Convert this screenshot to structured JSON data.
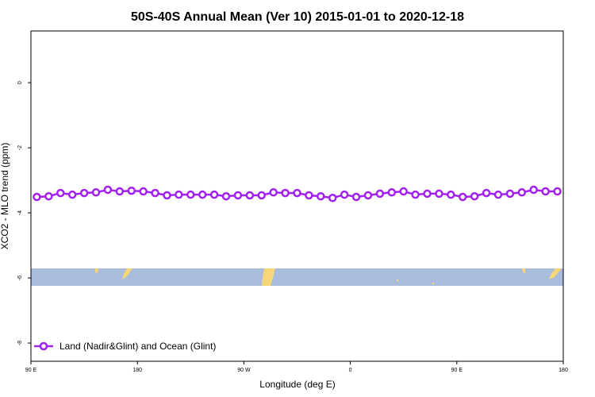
{
  "chart_data": {
    "type": "line",
    "title": "50S-40S Annual Mean (Ver 10)   2015-01-01 to 2020-12-18",
    "x_label": "Longitude (deg E)",
    "y_label": "XCO2 - MLO trend (ppm)",
    "x": [
      95,
      105,
      115,
      125,
      135,
      145,
      155,
      165,
      175,
      185,
      195,
      205,
      215,
      225,
      235,
      245,
      255,
      265,
      275,
      285,
      295,
      305,
      315,
      325,
      335,
      345,
      355,
      365,
      375,
      385,
      395,
      405,
      415,
      425,
      435,
      445,
      455,
      465,
      475,
      485,
      495,
      505,
      515,
      525,
      535
    ],
    "series": [
      {
        "name": "Land (Nadir&Glint) and Ocean (Glint)",
        "color": "#a020f0",
        "values": [
          -3.51,
          -3.49,
          -3.39,
          -3.44,
          -3.39,
          -3.37,
          -3.29,
          -3.34,
          -3.32,
          -3.34,
          -3.39,
          -3.46,
          -3.44,
          -3.44,
          -3.44,
          -3.44,
          -3.49,
          -3.46,
          -3.46,
          -3.46,
          -3.37,
          -3.39,
          -3.39,
          -3.46,
          -3.49,
          -3.54,
          -3.44,
          -3.51,
          -3.46,
          -3.41,
          -3.37,
          -3.34,
          -3.44,
          -3.41,
          -3.41,
          -3.44,
          -3.51,
          -3.49,
          -3.39,
          -3.44,
          -3.41,
          -3.37,
          -3.29,
          -3.34,
          -3.34
        ]
      }
    ],
    "xlim": [
      90,
      540
    ],
    "xticks": [
      {
        "value": 90,
        "label": "90 E"
      },
      {
        "value": 180,
        "label": "180"
      },
      {
        "value": 270,
        "label": "90 W"
      },
      {
        "value": 360,
        "label": "0"
      },
      {
        "value": 450,
        "label": "90 E"
      },
      {
        "value": 540,
        "label": "180"
      }
    ],
    "ylim": [
      -8.56,
      1.59
    ],
    "yticks": [
      0,
      -2,
      -4,
      -6,
      -8
    ],
    "legend": "bottom-left"
  }
}
